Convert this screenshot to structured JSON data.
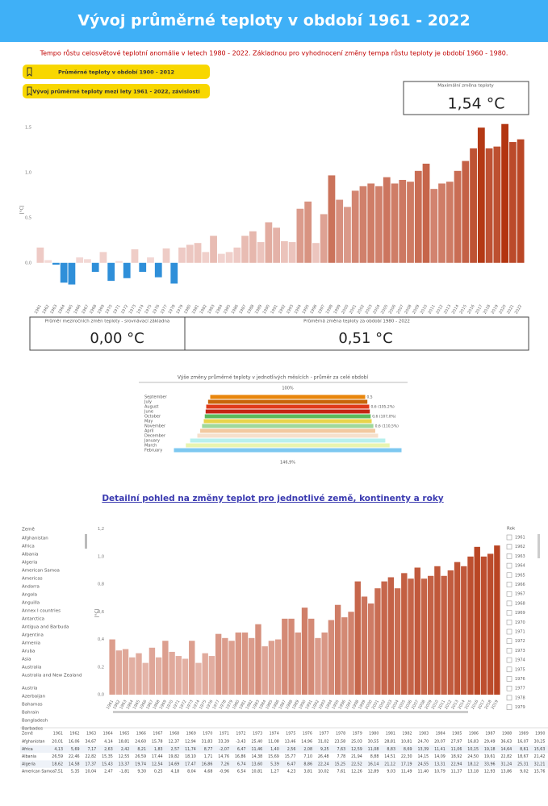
{
  "header": {
    "title": "Vývoj průměrné teploty v období 1961 - 2022"
  },
  "subtitle": "Tempo růstu celosvětové teplotní anomálie v letech 1980 - 2022.  Základnou pro vyhodnocení změny tempa růstu teploty je období 1960 - 1980.",
  "buttons": [
    "Průměrné teploty v období 1900 - 2012",
    "Vývoj průměrné teploty mezi lety 1961 - 2022, závislosti"
  ],
  "kpis": [
    {
      "label": "Maximální změna teploty",
      "value": "1,54 °C"
    },
    {
      "label": "Průměr meziročních změn teploty - srovnávací základna",
      "value": "0,00 °C"
    },
    {
      "label": "Průměrná změna teploty za období 1980 - 2022",
      "value": "0,51 °C"
    }
  ],
  "link": "Detailní pohled na změny teplot pro jednotlivé země, kontinenty a roky",
  "country_slicer": {
    "title": "Země",
    "items": [
      "Afghanistan",
      "Africa",
      "Albania",
      "Algeria",
      "American Samoa",
      "Americas",
      "Andorra",
      "Angola",
      "Anguilla",
      "Annex I countries",
      "Antarctica",
      "Antigua and Barbuda",
      "Argentina",
      "Armenia",
      "Aruba",
      "Asia",
      "Australia",
      "Australia and New Zealand",
      "Austria",
      "Azerbaijan",
      "Bahamas",
      "Bahrain",
      "Bangladesh",
      "Barbados"
    ]
  },
  "year_slicer": {
    "title": "Rok",
    "items": [
      "1961",
      "1962",
      "1963",
      "1964",
      "1965",
      "1966",
      "1967",
      "1968",
      "1969",
      "1970",
      "1971",
      "1972",
      "1973",
      "1974",
      "1975",
      "1976",
      "1977",
      "1978",
      "1979"
    ]
  },
  "table": {
    "header": [
      "Země",
      "1961",
      "1962",
      "1963",
      "1964",
      "1965",
      "1966",
      "1967",
      "1968",
      "1969",
      "1970",
      "1971",
      "1972",
      "1973",
      "1974",
      "1975",
      "1976",
      "1977",
      "1978",
      "1979",
      "1980",
      "1981",
      "1982",
      "1983",
      "1984",
      "1985",
      "1986",
      "1987",
      "1988",
      "1989",
      "1990",
      "1991"
    ],
    "rows": [
      [
        "Afghanistan",
        "20,01",
        "16,06",
        "34,67",
        "4,14",
        "18,81",
        "24,60",
        "15,78",
        "12,37",
        "12,94",
        "31,83",
        "33,39",
        "-3,43",
        "25,40",
        "11,08",
        "13,46",
        "14,96",
        "31,02",
        "23,58",
        "25,03",
        "30,55",
        "28,81",
        "10,81",
        "24,70",
        "20,07",
        "27,97",
        "16,83",
        "29,49",
        "36,63",
        "16,07",
        "30,25",
        "19,58"
      ],
      [
        "Africa",
        "4,13",
        "5,69",
        "7,17",
        "2,63",
        "2,42",
        "8,21",
        "1,83",
        "2,57",
        "11,74",
        "8,77",
        "-2,07",
        "6,47",
        "11,46",
        "1,40",
        "2,56",
        "2,08",
        "9,25",
        "7,63",
        "12,59",
        "11,08",
        "8,83",
        "8,69",
        "13,39",
        "11,41",
        "11,06",
        "10,15",
        "19,18",
        "14,64",
        "8,61",
        "15,63",
        "10,77"
      ],
      [
        "Albania",
        "26,59",
        "22,46",
        "22,82",
        "15,35",
        "12,55",
        "26,59",
        "17,44",
        "19,82",
        "18,10",
        "1,71",
        "14,76",
        "16,86",
        "14,38",
        "15,69",
        "15,77",
        "7,10",
        "26,48",
        "7,78",
        "21,94",
        "8,88",
        "14,51",
        "22,30",
        "14,15",
        "14,09",
        "18,92",
        "24,50",
        "19,61",
        "22,82",
        "18,67",
        "21,42",
        "11,74"
      ],
      [
        "Algeria",
        "18,62",
        "14,58",
        "17,37",
        "15,43",
        "13,37",
        "19,74",
        "12,54",
        "14,69",
        "17,47",
        "16,86",
        "7,26",
        "6,74",
        "13,60",
        "5,39",
        "6,47",
        "8,86",
        "22,24",
        "15,25",
        "22,52",
        "16,14",
        "21,12",
        "17,19",
        "24,55",
        "13,31",
        "22,94",
        "18,12",
        "33,96",
        "31,24",
        "25,31",
        "32,21",
        "14,08"
      ],
      [
        "American Samoa",
        "7,51",
        "5,35",
        "10,04",
        "2,47",
        "-1,81",
        "9,30",
        "0,25",
        "4,18",
        "8,04",
        "4,68",
        "-0,96",
        "6,54",
        "10,81",
        "1,27",
        "4,23",
        "3,81",
        "10,02",
        "7,61",
        "12,26",
        "12,89",
        "9,03",
        "11,49",
        "11,40",
        "10,79",
        "11,37",
        "13,18",
        "12,93",
        "13,86",
        "9,02",
        "15,76",
        "16,87"
      ]
    ]
  },
  "chart_data": [
    {
      "type": "bar",
      "ylabel": "[°C]",
      "color_scale": [
        "#f5dddb",
        "#b02e08"
      ],
      "negative_color": "#2f8fd9",
      "categories": [
        "1961",
        "1962",
        "1963",
        "1964",
        "1965",
        "1966",
        "1967",
        "1968",
        "1969",
        "1970",
        "1971",
        "1972",
        "1973",
        "1974",
        "1975",
        "1976",
        "1977",
        "1978",
        "1979",
        "1980",
        "1981",
        "1982",
        "1983",
        "1984",
        "1985",
        "1986",
        "1987",
        "1988",
        "1989",
        "1990",
        "1991",
        "1992",
        "1993",
        "1994",
        "1995",
        "1996",
        "1997",
        "1998",
        "1999",
        "2000",
        "2001",
        "2002",
        "2003",
        "2004",
        "2005",
        "2006",
        "2007",
        "2008",
        "2009",
        "2010",
        "2011",
        "2012",
        "2013",
        "2014",
        "2015",
        "2016",
        "2017",
        "2018",
        "2019",
        "2020",
        "2021",
        "2022"
      ],
      "values": [
        0.17,
        0.03,
        -0.02,
        -0.22,
        -0.24,
        0.06,
        0.04,
        -0.1,
        0.12,
        -0.2,
        0.02,
        -0.17,
        0.15,
        -0.1,
        0.06,
        -0.16,
        0.16,
        -0.23,
        0.17,
        0.2,
        0.22,
        0.12,
        0.3,
        0.1,
        0.12,
        0.17,
        0.3,
        0.35,
        0.23,
        0.45,
        0.39,
        0.24,
        0.23,
        0.6,
        0.68,
        0.22,
        0.54,
        0.97,
        0.7,
        0.62,
        0.8,
        0.85,
        0.88,
        0.85,
        0.95,
        0.88,
        0.92,
        0.9,
        1.02,
        1.1,
        0.82,
        0.88,
        0.9,
        1.02,
        1.13,
        1.27,
        1.5,
        1.27,
        1.29,
        1.54,
        1.34,
        1.37
      ],
      "ylim": [
        -0.36,
        1.6
      ],
      "yticks": [
        {
          "value": 0,
          "label": "0,0"
        },
        {
          "value": 0.5,
          "label": "0,5"
        },
        {
          "value": 1,
          "label": "1,0"
        },
        {
          "value": 1.5,
          "label": "1,5"
        }
      ]
    },
    {
      "type": "funnel",
      "title": "Výše změny průměrné teploty v jednotlivých měsících - průměr za celé období",
      "categories": [
        "September",
        "July",
        "August",
        "June",
        "October",
        "May",
        "November",
        "April",
        "December",
        "January",
        "March",
        "February"
      ],
      "values": [
        0.54,
        0.555,
        0.568,
        0.572,
        0.578,
        0.585,
        0.597,
        0.61,
        0.63,
        0.68,
        0.71,
        0.793
      ],
      "value_labels": [
        "0,5",
        null,
        "0,6 (105,2%)",
        null,
        "0,6 (107,0%)",
        null,
        "0,6 (110,5%)",
        null,
        null,
        null,
        null,
        null
      ],
      "colors": [
        "#e8860c",
        "#c8650a",
        "#e03a1a",
        "#c42414",
        "#5cb85c",
        "#e8d44a",
        "#9fd89a",
        "#f2c9a0",
        "#f6e0cc",
        "#b8f0ee",
        "#e8f4b0",
        "#7ec8f0"
      ],
      "annotations": [
        "100%",
        "146,9%"
      ]
    },
    {
      "type": "bar",
      "ylabel": "[°C]",
      "color_scale": [
        "#f0d2cc",
        "#b02e08"
      ],
      "negative_color": "#2f8fd9",
      "categories": [
        "1961",
        "1962",
        "1963",
        "1964",
        "1965",
        "1966",
        "1967",
        "1968",
        "1969",
        "1970",
        "1971",
        "1972",
        "1973",
        "1974",
        "1975",
        "1976",
        "1977",
        "1978",
        "1979",
        "1980",
        "1981",
        "1982",
        "1983",
        "1984",
        "1985",
        "1986",
        "1987",
        "1988",
        "1989",
        "1990",
        "1991",
        "1992",
        "1993",
        "1994",
        "1995",
        "1996",
        "1997",
        "1998",
        "1999",
        "2000",
        "2001",
        "2002",
        "2003",
        "2004",
        "2005",
        "2006",
        "2007",
        "2008",
        "2009",
        "2010",
        "2011",
        "2012",
        "2013",
        "2014",
        "2015",
        "2016",
        "2017",
        "2018",
        "2019"
      ],
      "values": [
        0.4,
        0.32,
        0.33,
        0.27,
        0.3,
        0.23,
        0.34,
        0.27,
        0.39,
        0.31,
        0.28,
        0.26,
        0.39,
        0.23,
        0.3,
        0.28,
        0.44,
        0.41,
        0.39,
        0.45,
        0.45,
        0.41,
        0.51,
        0.35,
        0.39,
        0.4,
        0.55,
        0.55,
        0.45,
        0.63,
        0.55,
        0.41,
        0.45,
        0.54,
        0.65,
        0.56,
        0.6,
        0.82,
        0.71,
        0.66,
        0.77,
        0.82,
        0.85,
        0.77,
        0.88,
        0.84,
        0.92,
        0.84,
        0.86,
        0.93,
        0.86,
        0.9,
        0.96,
        0.93,
        1.0,
        1.07,
        1.0,
        1.02,
        1.08
      ],
      "ylim": [
        0,
        1.25
      ],
      "yticks": [
        {
          "value": 0,
          "label": "0,0"
        },
        {
          "value": 0.2,
          "label": "0,2"
        },
        {
          "value": 0.4,
          "label": "0,4"
        },
        {
          "value": 0.6,
          "label": "0,6"
        },
        {
          "value": 0.8,
          "label": "0,8"
        },
        {
          "value": 1,
          "label": "1,0"
        },
        {
          "value": 1.2,
          "label": "1,2"
        }
      ]
    }
  ]
}
